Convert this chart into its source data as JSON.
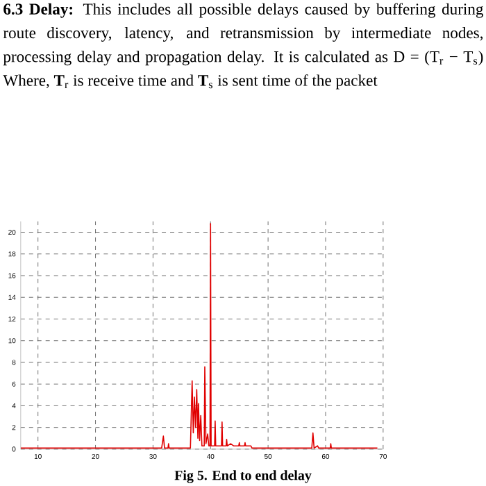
{
  "chart_data": {
    "type": "line",
    "title": "**6.3 Delay:** This includes all possible delays caused by buffering during route discovery, latency, and retransmission by intermediate nodes, processing delay and propagation delay. It is calculated as D = (T$_{r}$ − T$_{s}$) Where, **T**$_{r}$ is receive time and **T**$_{s}$ is sent time of the packet",
    "annotations": [
      "**Fig 5. End to end delay**"
    ],
    "xlim": [
      7,
      70
    ],
    "xticks": [
      10,
      20,
      30,
      40,
      50,
      60,
      70
    ],
    "ylim": [
      0,
      21
    ],
    "yticks": [
      0,
      2,
      4,
      6,
      8,
      10,
      12,
      14,
      16,
      18,
      20
    ],
    "grid": true,
    "line_style": "solid",
    "x": [
      7,
      31.5,
      31.8,
      32.0,
      32.6,
      32.7,
      32.8,
      36.5,
      36.8,
      37.0,
      37.2,
      37.4,
      37.6,
      37.8,
      37.9,
      38.1,
      38.3,
      38.5,
      38.9,
      39.0,
      39.2,
      39.5,
      39.7,
      39.9,
      40.0,
      40.1,
      40.7,
      40.8,
      40.9,
      41.9,
      42.0,
      42.1,
      42.7,
      42.8,
      42.9,
      43.5,
      44.0,
      44.9,
      45.0,
      45.1,
      45.9,
      46.0,
      46.1,
      47.0,
      47.2,
      57.6,
      57.8,
      58.0,
      58.6,
      58.8,
      60.8,
      60.9,
      61.0,
      69
    ],
    "series": [
      {
        "color": "#e00000",
        "values": [
          0.1,
          0.1,
          1.2,
          0.1,
          0.1,
          0.5,
          0.1,
          0.1,
          6.3,
          1.5,
          4.8,
          2.0,
          5.5,
          1.0,
          4.2,
          0.8,
          3.1,
          0.3,
          0.3,
          7.6,
          0.5,
          1.4,
          0.3,
          0.3,
          20.8,
          0.3,
          0.3,
          2.6,
          0.3,
          0.3,
          2.5,
          0.3,
          0.3,
          0.9,
          0.3,
          0.5,
          0.3,
          0.3,
          0.6,
          0.3,
          0.3,
          0.6,
          0.3,
          0.3,
          0.1,
          0.1,
          1.5,
          0.1,
          0.3,
          0.1,
          0.1,
          0.5,
          0.1,
          0.1
        ]
      }
    ]
  }
}
